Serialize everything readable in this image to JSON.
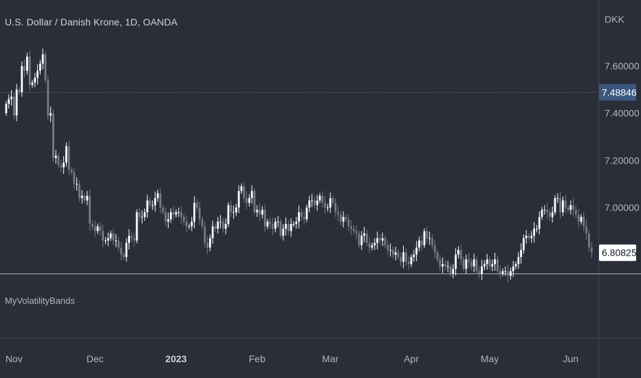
{
  "symbol_title": "U.S. Dollar / Danish Krone, 1D, OANDA",
  "indicator_name": "MyVolatilityBands",
  "currency_label": "DKK",
  "price_badges": [
    {
      "value": "7.48846",
      "bg": "#3b5780",
      "fg": "#ffffff"
    },
    {
      "value": "6.80825",
      "bg": "#ffffff",
      "fg": "#131722"
    }
  ],
  "colors": {
    "background": "#2a2e39",
    "candle_up": "#ffffff",
    "candle_down": "#787b86",
    "axis_text": "#b2b5be",
    "separator": "#b2b5be"
  },
  "chart_data": {
    "type": "candlestick",
    "title": "U.S. Dollar / Danish Krone, 1D, OANDA",
    "ylim": [
      6.72,
      7.88
    ],
    "y_ticks": [
      "7.60000",
      "7.40000",
      "7.20000",
      "7.00000"
    ],
    "y_tick_values": [
      7.6,
      7.4,
      7.2,
      7.0
    ],
    "x_ticks": [
      {
        "label": "Nov",
        "index": 3,
        "bold": false
      },
      {
        "label": "Dec",
        "index": 34,
        "bold": false
      },
      {
        "label": "2023",
        "index": 65,
        "bold": true
      },
      {
        "label": "Feb",
        "index": 96,
        "bold": false
      },
      {
        "label": "Mar",
        "index": 124,
        "bold": false
      },
      {
        "label": "Apr",
        "index": 155,
        "bold": false
      },
      {
        "label": "May",
        "index": 185,
        "bold": false
      },
      {
        "label": "Jun",
        "index": 216,
        "bold": false
      }
    ],
    "reference_line": 7.48846,
    "last_price": 6.80825,
    "close": [
      7.44,
      7.46,
      7.47,
      7.39,
      7.5,
      7.49,
      7.6,
      7.58,
      7.64,
      7.52,
      7.53,
      7.55,
      7.58,
      7.61,
      7.65,
      7.54,
      7.39,
      7.4,
      7.21,
      7.22,
      7.18,
      7.17,
      7.19,
      7.26,
      7.16,
      7.15,
      7.1,
      7.1,
      7.04,
      7.05,
      7.03,
      7.05,
      6.93,
      6.92,
      6.9,
      6.92,
      6.9,
      6.86,
      6.86,
      6.87,
      6.89,
      6.86,
      6.86,
      6.83,
      6.8,
      6.79,
      6.85,
      6.88,
      6.87,
      6.86,
      6.98,
      6.96,
      6.96,
      6.98,
      7.03,
      7.01,
      7.01,
      7.04,
      7.06,
      7.0,
      6.98,
      6.94,
      6.95,
      6.98,
      6.97,
      6.98,
      6.98,
      6.96,
      6.94,
      6.92,
      6.92,
      6.94,
      7.02,
      7.0,
      6.95,
      6.92,
      6.85,
      6.83,
      6.87,
      6.92,
      6.91,
      6.94,
      6.94,
      6.91,
      6.93,
      7.01,
      6.98,
      6.98,
      7.0,
      7.07,
      7.09,
      7.04,
      7.02,
      7.04,
      7.07,
      6.98,
      6.99,
      6.97,
      6.99,
      6.92,
      6.94,
      6.93,
      6.91,
      6.94,
      6.94,
      6.88,
      6.91,
      6.93,
      6.9,
      6.93,
      6.93,
      6.94,
      6.98,
      6.96,
      6.95,
      7.0,
      7.03,
      7.03,
      7.01,
      7.03,
      7.05,
      7.02,
      7.0,
      7.0,
      7.04,
      7.02,
      6.98,
      6.97,
      6.94,
      6.96,
      6.95,
      6.92,
      6.91,
      6.9,
      6.89,
      6.84,
      6.88,
      6.89,
      6.85,
      6.83,
      6.84,
      6.85,
      6.87,
      6.86,
      6.87,
      6.84,
      6.82,
      6.82,
      6.8,
      6.81,
      6.79,
      6.77,
      6.81,
      6.77,
      6.76,
      6.79,
      6.8,
      6.83,
      6.86,
      6.84,
      6.9,
      6.87,
      6.87,
      6.84,
      6.81,
      6.78,
      6.75,
      6.76,
      6.75,
      6.75,
      6.72,
      6.74,
      6.8,
      6.82,
      6.78,
      6.74,
      6.78,
      6.77,
      6.75,
      6.78,
      6.73,
      6.72,
      6.75,
      6.76,
      6.78,
      6.75,
      6.76,
      6.78,
      6.73,
      6.72,
      6.73,
      6.73,
      6.71,
      6.73,
      6.75,
      6.76,
      6.79,
      6.82,
      6.87,
      6.88,
      6.87,
      6.88,
      6.91,
      6.91,
      6.96,
      6.99,
      6.99,
      6.98,
      6.96,
      6.98,
      7.04,
      7.04,
      6.98,
      7.03,
      7.0,
      6.99,
      7.01,
      6.99,
      6.97,
      6.94,
      6.96,
      6.92,
      6.89,
      6.83,
      6.81
    ],
    "open": [
      7.4,
      7.44,
      7.46,
      7.47,
      7.39,
      7.5,
      7.49,
      7.6,
      7.58,
      7.64,
      7.52,
      7.53,
      7.55,
      7.58,
      7.61,
      7.65,
      7.54,
      7.39,
      7.4,
      7.21,
      7.22,
      7.18,
      7.17,
      7.19,
      7.26,
      7.16,
      7.15,
      7.1,
      7.1,
      7.04,
      7.05,
      7.03,
      7.05,
      6.93,
      6.92,
      6.9,
      6.92,
      6.9,
      6.86,
      6.86,
      6.87,
      6.89,
      6.86,
      6.86,
      6.83,
      6.8,
      6.79,
      6.85,
      6.88,
      6.87,
      6.86,
      6.98,
      6.96,
      6.96,
      6.98,
      7.03,
      7.01,
      7.01,
      7.04,
      7.06,
      7.0,
      6.98,
      6.94,
      6.95,
      6.98,
      6.97,
      6.98,
      6.98,
      6.96,
      6.94,
      6.92,
      6.92,
      6.94,
      7.02,
      7.0,
      6.95,
      6.92,
      6.85,
      6.83,
      6.87,
      6.92,
      6.91,
      6.94,
      6.94,
      6.91,
      6.93,
      7.01,
      6.98,
      6.98,
      7.0,
      7.07,
      7.09,
      7.04,
      7.02,
      7.04,
      7.07,
      6.98,
      6.99,
      6.97,
      6.99,
      6.92,
      6.94,
      6.93,
      6.91,
      6.94,
      6.94,
      6.88,
      6.91,
      6.93,
      6.9,
      6.93,
      6.93,
      6.94,
      6.98,
      6.96,
      6.95,
      7.0,
      7.03,
      7.03,
      7.01,
      7.03,
      7.05,
      7.02,
      7.0,
      7.0,
      7.04,
      7.02,
      6.98,
      6.97,
      6.94,
      6.96,
      6.95,
      6.92,
      6.91,
      6.9,
      6.89,
      6.84,
      6.88,
      6.89,
      6.85,
      6.83,
      6.84,
      6.85,
      6.87,
      6.86,
      6.87,
      6.84,
      6.82,
      6.82,
      6.8,
      6.81,
      6.79,
      6.77,
      6.81,
      6.77,
      6.76,
      6.79,
      6.8,
      6.83,
      6.86,
      6.84,
      6.9,
      6.87,
      6.87,
      6.84,
      6.81,
      6.78,
      6.75,
      6.76,
      6.75,
      6.75,
      6.72,
      6.74,
      6.8,
      6.82,
      6.78,
      6.74,
      6.78,
      6.77,
      6.75,
      6.78,
      6.73,
      6.72,
      6.75,
      6.76,
      6.78,
      6.75,
      6.76,
      6.78,
      6.73,
      6.72,
      6.73,
      6.73,
      6.71,
      6.73,
      6.75,
      6.76,
      6.79,
      6.82,
      6.87,
      6.88,
      6.87,
      6.88,
      6.91,
      6.91,
      6.96,
      6.99,
      6.99,
      6.98,
      6.96,
      6.98,
      7.04,
      7.04,
      6.98,
      7.03,
      7.0,
      6.99,
      7.01,
      6.99,
      6.97,
      6.94,
      6.96,
      6.92,
      6.89,
      6.83
    ]
  }
}
